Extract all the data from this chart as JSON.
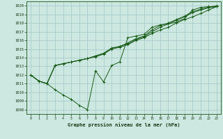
{
  "title": "Graphe pression niveau de la mer (hPa)",
  "bg_color": "#cce8e0",
  "grid_color": "#aacccc",
  "line_color": "#1a5c1a",
  "xlim": [
    -0.5,
    23.5
  ],
  "ylim": [
    1007.5,
    1020.5
  ],
  "xticks": [
    0,
    1,
    2,
    3,
    4,
    5,
    6,
    7,
    8,
    9,
    10,
    11,
    12,
    13,
    14,
    15,
    16,
    17,
    18,
    19,
    20,
    21,
    22,
    23
  ],
  "yticks": [
    1008,
    1009,
    1010,
    1011,
    1012,
    1013,
    1014,
    1015,
    1016,
    1017,
    1018,
    1019,
    1020
  ],
  "series": [
    [
      1012.0,
      1011.3,
      1011.0,
      1010.3,
      1009.7,
      1009.2,
      1008.5,
      1008.0,
      1012.5,
      1011.2,
      1013.1,
      1013.5,
      1016.3,
      1016.5,
      1016.7,
      1017.5,
      1017.8,
      1017.9,
      1018.1,
      1018.5,
      1019.5,
      1019.8,
      1019.9,
      1019.9
    ],
    [
      1012.0,
      1011.3,
      1011.0,
      1013.1,
      1013.3,
      1013.5,
      1013.7,
      1013.9,
      1014.1,
      1014.4,
      1015.0,
      1015.2,
      1015.5,
      1016.0,
      1016.3,
      1016.8,
      1017.2,
      1017.5,
      1018.0,
      1018.4,
      1018.7,
      1019.1,
      1019.5,
      1019.9
    ],
    [
      1012.0,
      1011.3,
      1011.0,
      1013.1,
      1013.3,
      1013.5,
      1013.7,
      1013.9,
      1014.2,
      1014.5,
      1015.1,
      1015.3,
      1015.6,
      1016.1,
      1016.4,
      1017.0,
      1017.5,
      1017.9,
      1018.3,
      1018.7,
      1019.2,
      1019.5,
      1019.75,
      1019.9
    ],
    [
      1012.0,
      1011.3,
      1011.0,
      1013.1,
      1013.3,
      1013.5,
      1013.7,
      1013.9,
      1014.2,
      1014.5,
      1015.1,
      1015.3,
      1015.7,
      1016.2,
      1016.5,
      1017.2,
      1017.7,
      1018.0,
      1018.4,
      1018.8,
      1019.3,
      1019.6,
      1019.85,
      1020.0
    ]
  ]
}
